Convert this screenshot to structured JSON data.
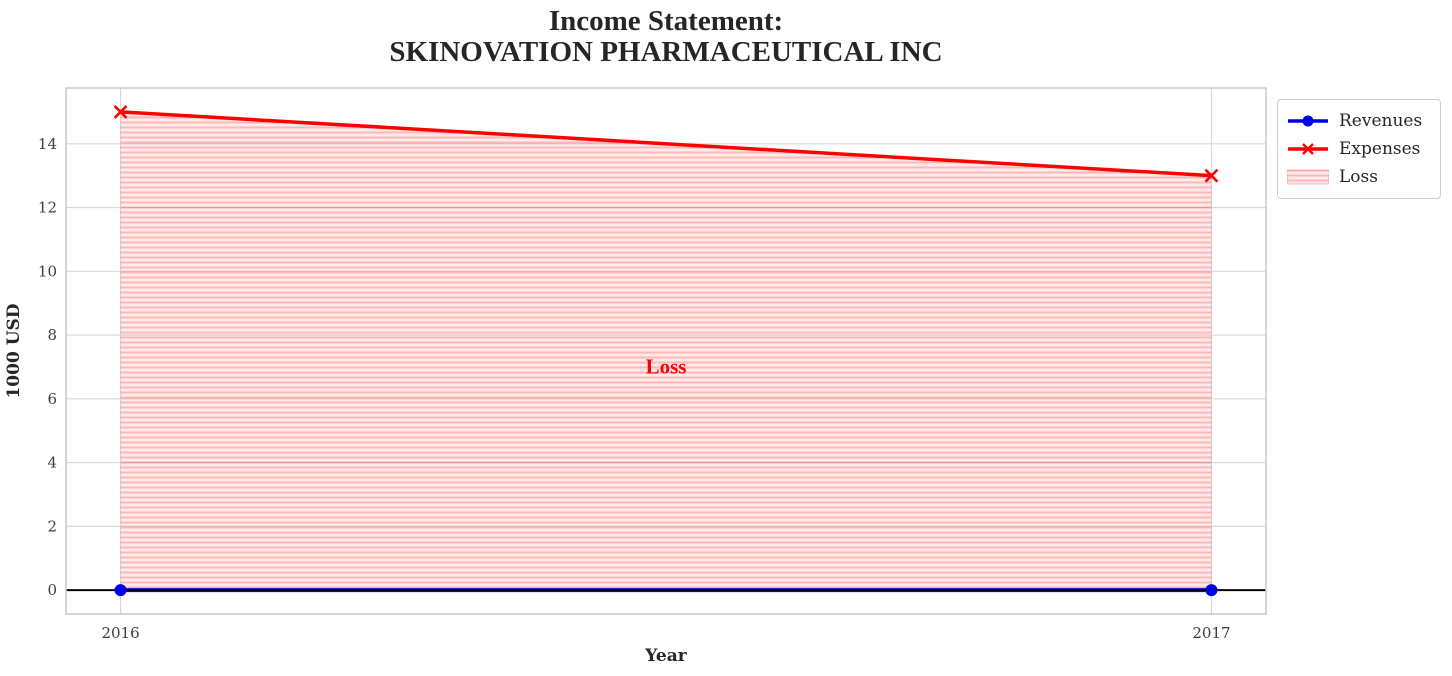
{
  "title": {
    "line1": "Income Statement:",
    "line2": "SKINOVATION PHARMACEUTICAL INC"
  },
  "chart_data": {
    "type": "line",
    "title": "Income Statement: SKINOVATION PHARMACEUTICAL INC",
    "xlabel": "Year",
    "ylabel": "1000 USD",
    "x": [
      2016,
      2017
    ],
    "series": [
      {
        "name": "Revenues",
        "values": [
          0,
          0
        ],
        "color": "#0000ee",
        "marker": "circle",
        "line_width": 4
      },
      {
        "name": "Expenses",
        "values": [
          15,
          13
        ],
        "color": "#ff0000",
        "marker": "x",
        "line_width": 3.5
      }
    ],
    "fill_between": {
      "label": "Loss",
      "lower_series": "Revenues",
      "upper_series": "Expenses",
      "fill_color": "rgba(255,0,0,0.08)",
      "hatch": "horizontal",
      "hatch_color": "rgba(255,0,0,0.22)"
    },
    "annotation": {
      "text": "Loss",
      "x": 2016.5,
      "y": 7,
      "color": "#ff0000"
    },
    "xticks": [
      "2016",
      "2017"
    ],
    "xtick_values": [
      2016,
      2017
    ],
    "yticks": [
      0,
      2,
      4,
      6,
      8,
      10,
      12,
      14
    ],
    "xlim": [
      2015.95,
      2017.05
    ],
    "ylim": [
      -0.75,
      15.75
    ],
    "grid": true,
    "zero_line_color": "#000000",
    "legend": {
      "position": "outside-top-right",
      "entries": [
        {
          "label": "Revenues",
          "swatch": "blue-line-circle-marker"
        },
        {
          "label": "Expenses",
          "swatch": "red-line-x-marker"
        },
        {
          "label": "Loss",
          "swatch": "hatched-patch"
        }
      ]
    }
  },
  "colors": {
    "background": "#ffffff",
    "grid": "#d8d8d8",
    "spine": "#c8c8c8",
    "tick_label": "#3d3d3d",
    "title": "#262626",
    "revenues": "#0000ee",
    "expenses": "#ff0000"
  }
}
